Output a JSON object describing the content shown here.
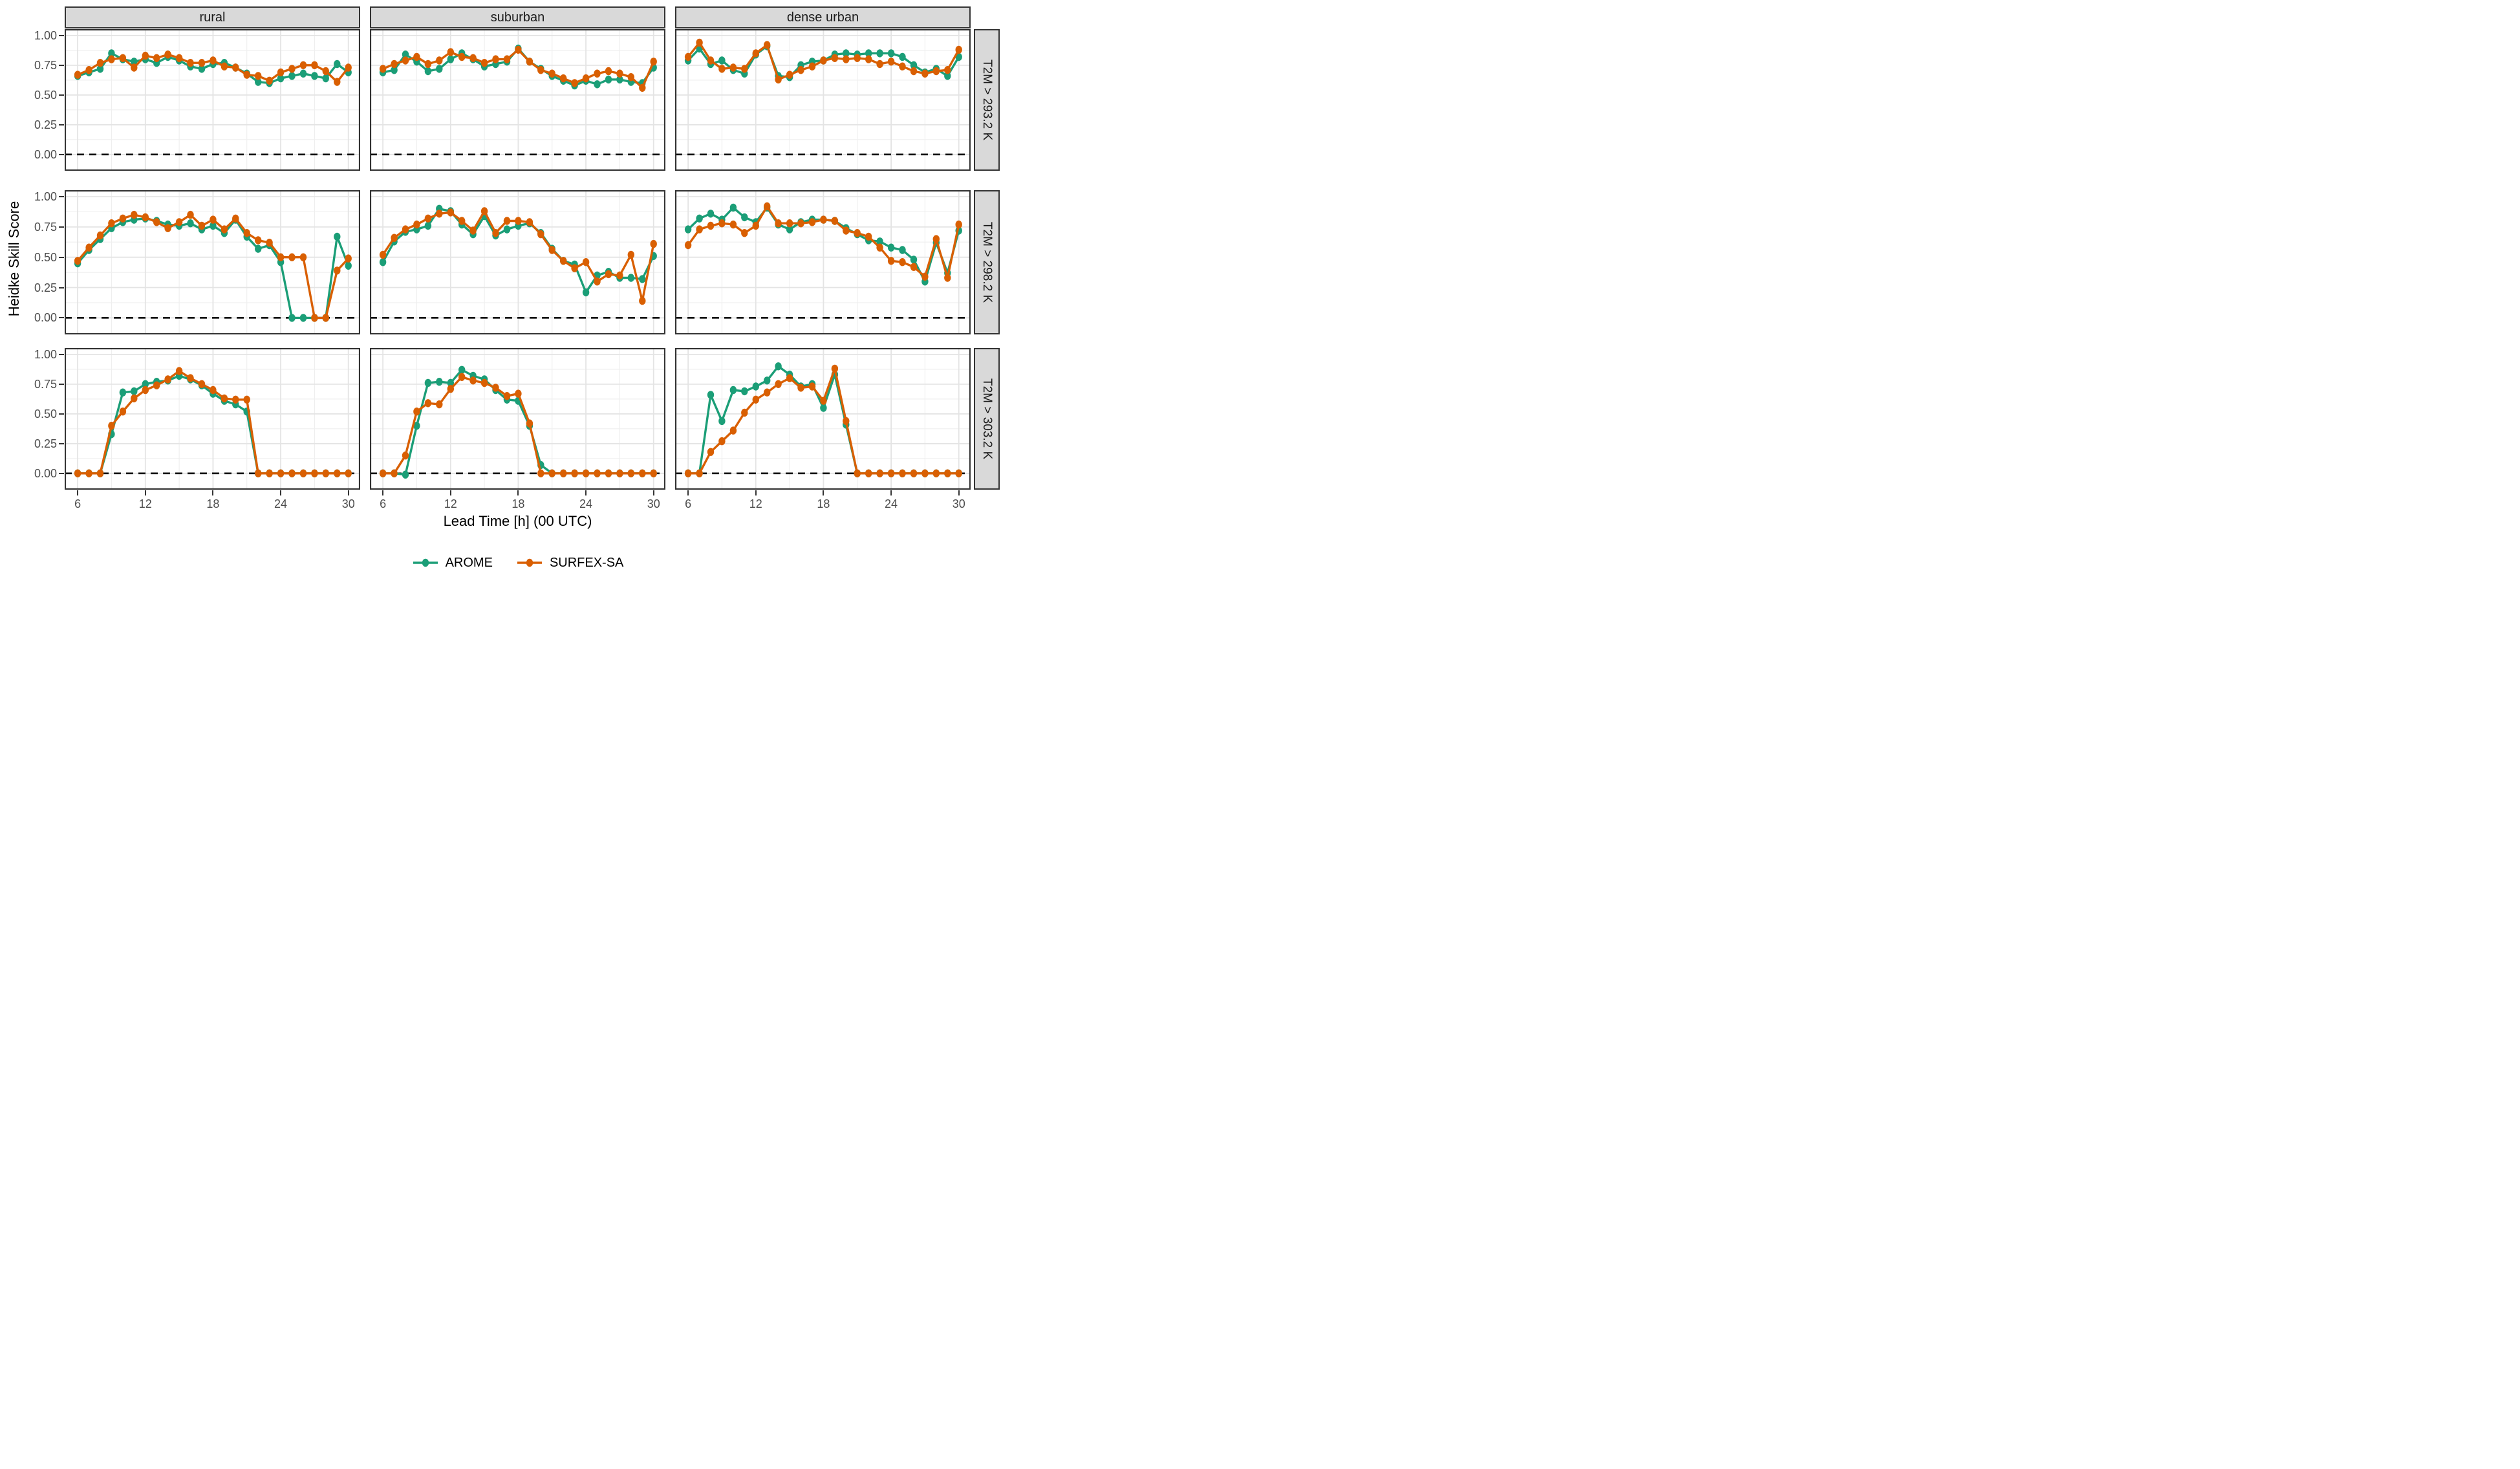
{
  "y_axis": {
    "title": "Heidke Skill Score",
    "tick_labels": [
      "1.00",
      "0.75",
      "0.50",
      "0.25",
      "0.00"
    ],
    "tick_values": [
      1.0,
      0.75,
      0.5,
      0.25,
      0.0
    ]
  },
  "x_axis": {
    "title": "Lead Time [h] (00 UTC)",
    "tick_labels": [
      "6",
      "12",
      "18",
      "24",
      "30"
    ],
    "tick_values": [
      6,
      12,
      18,
      24,
      30
    ]
  },
  "legend": {
    "items": [
      {
        "label": "AROME",
        "color": "#1b9e77"
      },
      {
        "label": "SURFEX-SA",
        "color": "#d95f02"
      }
    ]
  },
  "colors": {
    "AROME": "#1b9e77",
    "SURFEX-SA": "#d95f02",
    "strip_background": "#d9d9d9",
    "panel_border": "#333333",
    "grid_major": "#e4e4e4",
    "grid_minor": "#efefef",
    "tick_text": "#4d4d4d",
    "reference_line": "#000000"
  },
  "chart_data": {
    "type": "line",
    "title": "",
    "xlabel": "Lead Time [h] (00 UTC)",
    "ylabel": "Heidke Skill Score",
    "x": [
      6,
      7,
      8,
      9,
      10,
      11,
      12,
      13,
      14,
      15,
      16,
      17,
      18,
      19,
      20,
      21,
      22,
      23,
      24,
      25,
      26,
      27,
      28,
      29,
      30
    ],
    "xlim": [
      6,
      30
    ],
    "ylim": [
      -0.05,
      1.05
    ],
    "x_major_gridlines": [
      6,
      12,
      18,
      24,
      30
    ],
    "x_minor_gridlines": [
      9,
      15,
      21,
      27
    ],
    "y_major_gridlines": [
      0,
      0.25,
      0.5,
      0.75,
      1.0
    ],
    "y_minor_gridlines": [
      0.125,
      0.375,
      0.625,
      0.875
    ],
    "grid": "on",
    "legend_position": "bottom",
    "reference_line_y": 0,
    "facet_cols": [
      "rural",
      "suburban",
      "dense urban"
    ],
    "facet_rows": [
      "T2M > 293.2 K",
      "T2M > 298.2 K",
      "T2M > 303.2 K"
    ],
    "series_names": [
      "AROME",
      "SURFEX-SA"
    ],
    "panels": [
      {
        "row": "T2M > 293.2 K",
        "col": "rural",
        "series": [
          {
            "name": "AROME",
            "values": [
              0.66,
              0.69,
              0.72,
              0.85,
              0.8,
              0.78,
              0.8,
              0.77,
              0.82,
              0.79,
              0.74,
              0.72,
              0.76,
              0.77,
              0.73,
              0.68,
              0.61,
              0.6,
              0.64,
              0.66,
              0.68,
              0.66,
              0.64,
              0.76,
              0.69
            ]
          },
          {
            "name": "SURFEX-SA",
            "values": [
              0.67,
              0.71,
              0.77,
              0.8,
              0.81,
              0.73,
              0.83,
              0.81,
              0.84,
              0.81,
              0.77,
              0.77,
              0.79,
              0.74,
              0.73,
              0.67,
              0.66,
              0.62,
              0.69,
              0.72,
              0.75,
              0.75,
              0.7,
              0.61,
              0.73
            ]
          }
        ]
      },
      {
        "row": "T2M > 293.2 K",
        "col": "suburban",
        "series": [
          {
            "name": "AROME",
            "values": [
              0.69,
              0.71,
              0.84,
              0.78,
              0.7,
              0.72,
              0.8,
              0.85,
              0.8,
              0.74,
              0.76,
              0.78,
              0.89,
              0.78,
              0.72,
              0.66,
              0.62,
              0.58,
              0.62,
              0.59,
              0.63,
              0.63,
              0.61,
              0.6,
              0.73
            ]
          },
          {
            "name": "SURFEX-SA",
            "values": [
              0.72,
              0.76,
              0.79,
              0.82,
              0.76,
              0.79,
              0.86,
              0.82,
              0.81,
              0.77,
              0.8,
              0.8,
              0.88,
              0.78,
              0.71,
              0.68,
              0.64,
              0.6,
              0.64,
              0.68,
              0.7,
              0.68,
              0.65,
              0.56,
              0.78
            ]
          }
        ]
      },
      {
        "row": "T2M > 293.2 K",
        "col": "dense urban",
        "series": [
          {
            "name": "AROME",
            "values": [
              0.79,
              0.89,
              0.76,
              0.79,
              0.71,
              0.68,
              0.84,
              0.91,
              0.66,
              0.65,
              0.75,
              0.78,
              0.79,
              0.84,
              0.85,
              0.84,
              0.85,
              0.85,
              0.85,
              0.82,
              0.75,
              0.69,
              0.72,
              0.66,
              0.82
            ]
          },
          {
            "name": "SURFEX-SA",
            "values": [
              0.82,
              0.94,
              0.79,
              0.72,
              0.73,
              0.72,
              0.85,
              0.92,
              0.63,
              0.67,
              0.71,
              0.74,
              0.79,
              0.81,
              0.8,
              0.81,
              0.8,
              0.76,
              0.78,
              0.74,
              0.7,
              0.68,
              0.7,
              0.71,
              0.88
            ]
          }
        ]
      },
      {
        "row": "T2M > 298.2 K",
        "col": "rural",
        "series": [
          {
            "name": "AROME",
            "values": [
              0.45,
              0.56,
              0.65,
              0.74,
              0.79,
              0.81,
              0.82,
              0.8,
              0.77,
              0.76,
              0.78,
              0.73,
              0.76,
              0.7,
              0.81,
              0.67,
              0.57,
              0.6,
              0.46,
              0.0,
              0.0,
              0.0,
              0.0,
              0.67,
              0.43
            ]
          },
          {
            "name": "SURFEX-SA",
            "values": [
              0.47,
              0.58,
              0.68,
              0.78,
              0.82,
              0.85,
              0.83,
              0.79,
              0.74,
              0.79,
              0.85,
              0.76,
              0.81,
              0.73,
              0.82,
              0.7,
              0.64,
              0.62,
              0.5,
              0.5,
              0.5,
              0.0,
              0.0,
              0.39,
              0.49
            ]
          }
        ]
      },
      {
        "row": "T2M > 298.2 K",
        "col": "suburban",
        "series": [
          {
            "name": "AROME",
            "values": [
              0.46,
              0.63,
              0.71,
              0.73,
              0.76,
              0.9,
              0.88,
              0.77,
              0.69,
              0.84,
              0.68,
              0.73,
              0.76,
              0.78,
              0.7,
              0.57,
              0.47,
              0.44,
              0.21,
              0.35,
              0.38,
              0.33,
              0.33,
              0.32,
              0.51
            ]
          },
          {
            "name": "SURFEX-SA",
            "values": [
              0.52,
              0.66,
              0.73,
              0.77,
              0.82,
              0.86,
              0.87,
              0.8,
              0.72,
              0.88,
              0.7,
              0.8,
              0.8,
              0.79,
              0.69,
              0.56,
              0.47,
              0.41,
              0.46,
              0.3,
              0.36,
              0.35,
              0.52,
              0.14,
              0.61
            ]
          }
        ]
      },
      {
        "row": "T2M > 298.2 K",
        "col": "dense urban",
        "series": [
          {
            "name": "AROME",
            "values": [
              0.73,
              0.82,
              0.86,
              0.81,
              0.91,
              0.83,
              0.79,
              0.91,
              0.77,
              0.73,
              0.79,
              0.81,
              0.81,
              0.8,
              0.74,
              0.69,
              0.64,
              0.63,
              0.58,
              0.56,
              0.48,
              0.3,
              0.62,
              0.37,
              0.72
            ]
          },
          {
            "name": "SURFEX-SA",
            "values": [
              0.6,
              0.73,
              0.76,
              0.78,
              0.77,
              0.7,
              0.76,
              0.92,
              0.78,
              0.78,
              0.78,
              0.79,
              0.81,
              0.8,
              0.72,
              0.7,
              0.67,
              0.58,
              0.47,
              0.46,
              0.42,
              0.34,
              0.65,
              0.33,
              0.77
            ]
          }
        ]
      },
      {
        "row": "T2M > 303.2 K",
        "col": "rural",
        "series": [
          {
            "name": "AROME",
            "values": [
              0.0,
              0.0,
              0.0,
              0.33,
              0.68,
              0.69,
              0.75,
              0.77,
              0.78,
              0.82,
              0.79,
              0.74,
              0.67,
              0.61,
              0.58,
              0.52,
              0.0,
              0.0,
              0.0,
              0.0,
              0.0,
              0.0,
              0.0,
              0.0,
              0.0
            ]
          },
          {
            "name": "SURFEX-SA",
            "values": [
              0.0,
              0.0,
              0.0,
              0.4,
              0.52,
              0.63,
              0.7,
              0.74,
              0.79,
              0.86,
              0.8,
              0.75,
              0.7,
              0.63,
              0.62,
              0.62,
              0.0,
              0.0,
              0.0,
              0.0,
              0.0,
              0.0,
              0.0,
              0.0,
              0.0
            ]
          }
        ]
      },
      {
        "row": "T2M > 303.2 K",
        "col": "suburban",
        "series": [
          {
            "name": "AROME",
            "values": [
              0.0,
              0.0,
              -0.01,
              0.4,
              0.76,
              0.77,
              0.76,
              0.87,
              0.82,
              0.79,
              0.7,
              0.62,
              0.61,
              0.4,
              0.07,
              0.0,
              0.0,
              0.0,
              0.0,
              0.0,
              0.0,
              0.0,
              0.0,
              0.0,
              0.0
            ]
          },
          {
            "name": "SURFEX-SA",
            "values": [
              0.0,
              0.0,
              0.15,
              0.52,
              0.59,
              0.58,
              0.71,
              0.81,
              0.78,
              0.76,
              0.72,
              0.65,
              0.67,
              0.42,
              0.0,
              0.0,
              0.0,
              0.0,
              0.0,
              0.0,
              0.0,
              0.0,
              0.0,
              0.0,
              0.0
            ]
          }
        ]
      },
      {
        "row": "T2M > 303.2 K",
        "col": "dense urban",
        "series": [
          {
            "name": "AROME",
            "values": [
              0.0,
              0.0,
              0.66,
              0.44,
              0.7,
              0.69,
              0.73,
              0.78,
              0.9,
              0.83,
              0.73,
              0.75,
              0.55,
              0.83,
              0.41,
              0.0,
              0.0,
              0.0,
              0.0,
              0.0,
              0.0,
              0.0,
              0.0,
              0.0,
              0.0
            ]
          },
          {
            "name": "SURFEX-SA",
            "values": [
              0.0,
              0.0,
              0.18,
              0.27,
              0.36,
              0.51,
              0.62,
              0.68,
              0.75,
              0.8,
              0.72,
              0.73,
              0.61,
              0.88,
              0.44,
              0.0,
              0.0,
              0.0,
              0.0,
              0.0,
              0.0,
              0.0,
              0.0,
              0.0,
              0.0
            ]
          }
        ]
      }
    ]
  }
}
